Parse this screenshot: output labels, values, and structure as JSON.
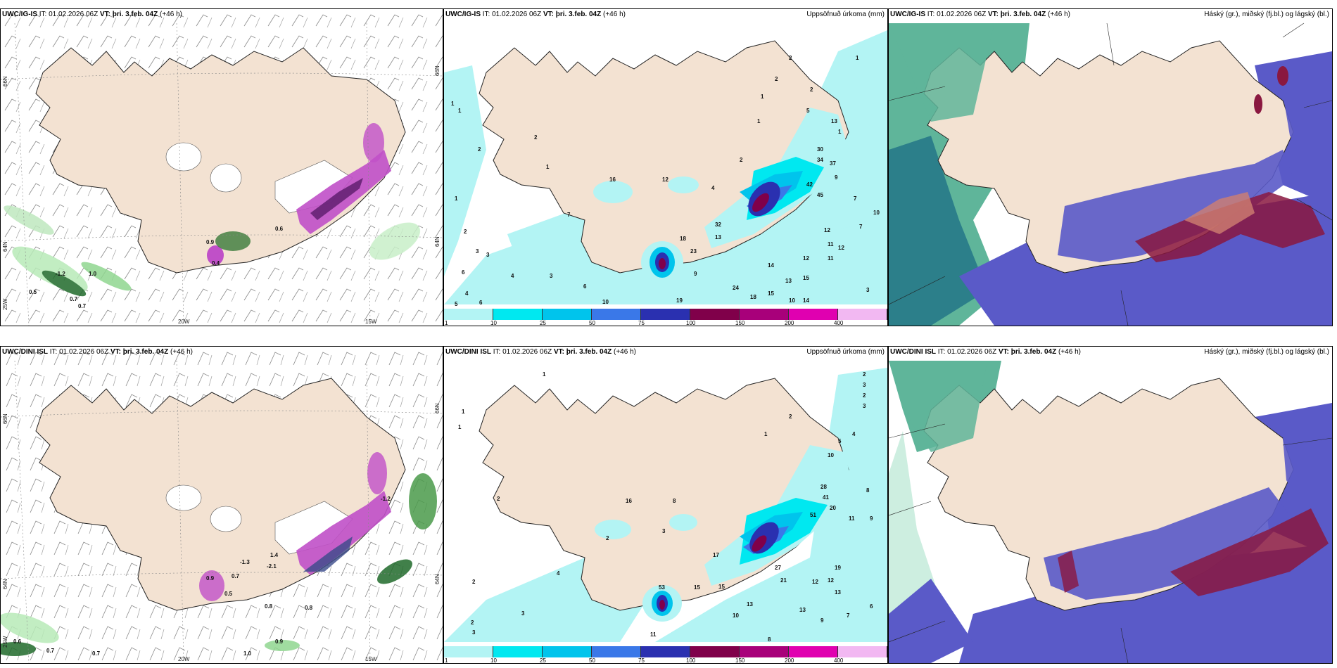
{
  "header": {
    "it": "IT: 01.02.2026 06Z",
    "vt_label": "VT:",
    "vt_value": "þri. 3.feb. 04Z",
    "lead": "(+46 h)"
  },
  "models": [
    "UWC/IG-IS",
    "UWC/DINI ISL"
  ],
  "panel_titles": {
    "precip": "Uppsöfnuð úrkoma (mm)",
    "cloud": "Háský (gr.), miðský (fj.bl.) og lágský (bl.)"
  },
  "axis_labels": {
    "lat66": "66N",
    "lat64": "64N",
    "lon25": "25W",
    "lon20": "20W",
    "lon15": "15W"
  },
  "legend": {
    "ticks": [
      "1",
      "10",
      "25",
      "50",
      "75",
      "100",
      "150",
      "200",
      "400"
    ],
    "colors": [
      "#b3f4f4",
      "#00e8f0",
      "#00c4ec",
      "#3a78e8",
      "#2a30b0",
      "#80004a",
      "#a8007a",
      "#e000b0",
      "#f2b8f2"
    ]
  },
  "values": {
    "r1_wind": [
      "0.9",
      "0.6",
      "1.0",
      "0.5",
      "0.7",
      "0.7",
      "-1.2",
      "0.4"
    ],
    "r1_precip": [
      "2",
      "2",
      "1",
      "1",
      "1",
      "2",
      "1",
      "1",
      "2",
      "4",
      "5",
      "13",
      "30",
      "34",
      "37",
      "42",
      "45",
      "9",
      "7",
      "10",
      "7",
      "12",
      "11",
      "12",
      "12",
      "15",
      "13",
      "11",
      "14",
      "32",
      "13",
      "18",
      "23",
      "9",
      "24",
      "19",
      "18",
      "15",
      "10",
      "14",
      "12",
      "16",
      "2",
      "1",
      "3",
      "2",
      "3",
      "6",
      "4",
      "3",
      "6",
      "4",
      "7",
      "10",
      "3",
      "6",
      "5",
      "1",
      "2",
      "1"
    ],
    "r2_wind": [
      "0.9",
      "0.7",
      "0.5",
      "-1.3",
      "1.4",
      "-2.1",
      "0.8",
      "0.8",
      "0.6",
      "0.7",
      "0.7",
      "1.0",
      "0.9",
      "-1.2"
    ],
    "r2_precip": [
      "1",
      "2",
      "3",
      "2",
      "3",
      "4",
      "5",
      "10",
      "28",
      "41",
      "51",
      "20",
      "11",
      "8",
      "9",
      "19",
      "12",
      "12",
      "13",
      "7",
      "6",
      "21",
      "27",
      "13",
      "10",
      "9",
      "8",
      "15",
      "15",
      "13",
      "53",
      "11",
      "17",
      "3",
      "2",
      "4",
      "3",
      "2",
      "2",
      "1",
      "16",
      "8",
      "2",
      "4",
      "3",
      "1",
      "1",
      "2",
      "10"
    ]
  },
  "colors": {
    "land": "#f3e2d2",
    "sea": "#ffffff",
    "coast": "#222222",
    "cloud_green": "#5fb59a",
    "cloud_blue": "#5555c8",
    "cloud_red": "#8a1840"
  }
}
